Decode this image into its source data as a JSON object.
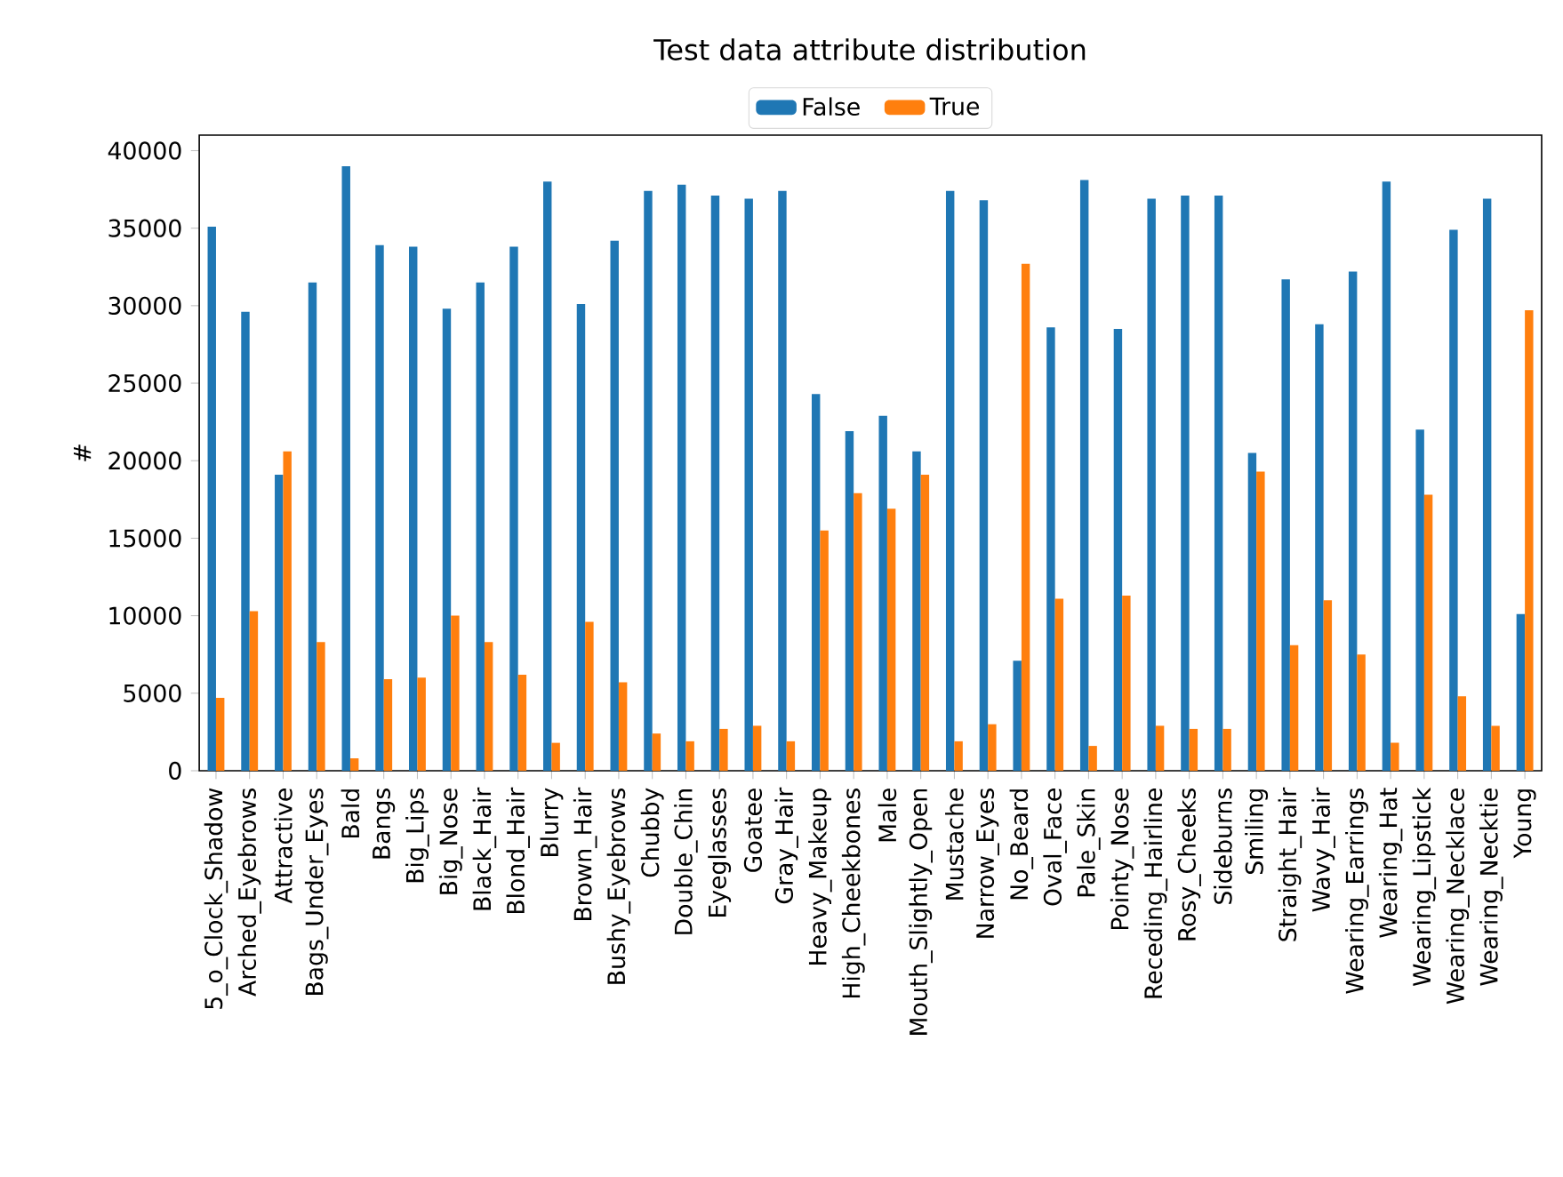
{
  "chart_data": {
    "type": "bar",
    "title": "Test data attribute distribution",
    "ylabel": "#",
    "categories": [
      "5_o_Clock_Shadow",
      "Arched_Eyebrows",
      "Attractive",
      "Bags_Under_Eyes",
      "Bald",
      "Bangs",
      "Big_Lips",
      "Big_Nose",
      "Black_Hair",
      "Blond_Hair",
      "Blurry",
      "Brown_Hair",
      "Bushy_Eyebrows",
      "Chubby",
      "Double_Chin",
      "Eyeglasses",
      "Goatee",
      "Gray_Hair",
      "Heavy_Makeup",
      "High_Cheekbones",
      "Male",
      "Mouth_Slightly_Open",
      "Mustache",
      "Narrow_Eyes",
      "No_Beard",
      "Oval_Face",
      "Pale_Skin",
      "Pointy_Nose",
      "Receding_Hairline",
      "Rosy_Cheeks",
      "Sideburns",
      "Smiling",
      "Straight_Hair",
      "Wavy_Hair",
      "Wearing_Earrings",
      "Wearing_Hat",
      "Wearing_Lipstick",
      "Wearing_Necklace",
      "Wearing_Necktie",
      "Young"
    ],
    "series": [
      {
        "name": "False",
        "color": "#1f77b4",
        "values": [
          35100,
          29600,
          19100,
          31500,
          39000,
          33900,
          33800,
          29800,
          31500,
          33800,
          38000,
          30100,
          34200,
          37400,
          37800,
          37100,
          36900,
          37400,
          24300,
          21900,
          22900,
          20600,
          37400,
          36800,
          7100,
          28600,
          38100,
          28500,
          36900,
          37100,
          37100,
          20500,
          31700,
          28800,
          32200,
          38000,
          22000,
          34900,
          36900,
          10100
        ]
      },
      {
        "name": "True",
        "color": "#ff7f0e",
        "values": [
          4700,
          10300,
          20600,
          8300,
          800,
          5900,
          6000,
          10000,
          8300,
          6200,
          1800,
          9600,
          5700,
          2400,
          1900,
          2700,
          2900,
          1900,
          15500,
          17900,
          16900,
          19100,
          1900,
          3000,
          32700,
          11100,
          1600,
          11300,
          2900,
          2700,
          2700,
          19300,
          8100,
          11000,
          7500,
          1800,
          17800,
          4800,
          2900,
          29700
        ]
      }
    ],
    "ylim": [
      0,
      41000
    ],
    "yticks": [
      0,
      5000,
      10000,
      15000,
      20000,
      25000,
      30000,
      35000,
      40000
    ],
    "legend": "top"
  }
}
